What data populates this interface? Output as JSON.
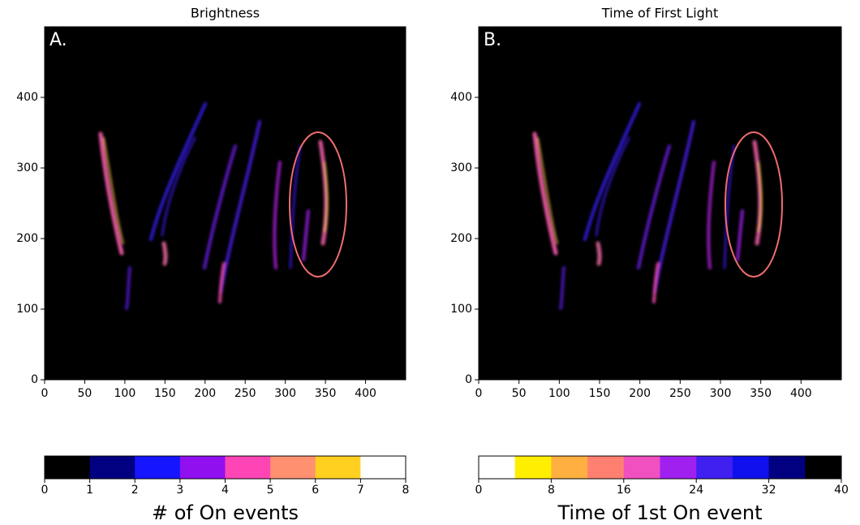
{
  "chart_data": [
    {
      "type": "heatmap",
      "title": "Brightness",
      "panel_label": "A.",
      "xlim": [
        0,
        450
      ],
      "ylim": [
        0,
        500
      ],
      "xticks": [
        0,
        50,
        100,
        150,
        200,
        250,
        300,
        350,
        400
      ],
      "yticks": [
        0,
        100,
        200,
        300,
        400
      ],
      "colorbar": {
        "label": "# of On events",
        "lim": [
          0,
          8
        ],
        "ticks": [
          0,
          1,
          2,
          3,
          4,
          5,
          6,
          7,
          8
        ],
        "colors": [
          "#000000",
          "#000080",
          "#1515ff",
          "#9010f0",
          "#ff45b5",
          "#ff9070",
          "#ffd020",
          "#ffffff"
        ]
      }
    },
    {
      "type": "heatmap",
      "title": "Time of First Light",
      "panel_label": "B.",
      "xlim": [
        0,
        450
      ],
      "ylim": [
        0,
        500
      ],
      "xticks": [
        0,
        50,
        100,
        150,
        200,
        250,
        300,
        350,
        400
      ],
      "yticks": [
        0,
        100,
        200,
        300,
        400
      ],
      "colorbar": {
        "label": "Time of 1st On event",
        "lim": [
          0,
          40
        ],
        "ticks": [
          0,
          8,
          16,
          24,
          32,
          40
        ],
        "colors": [
          "#ffffff",
          "#ffee00",
          "#ffb040",
          "#ff8070",
          "#f050c0",
          "#a020f0",
          "#4020f0",
          "#1010ee",
          "#000080",
          "#000000"
        ]
      }
    }
  ]
}
